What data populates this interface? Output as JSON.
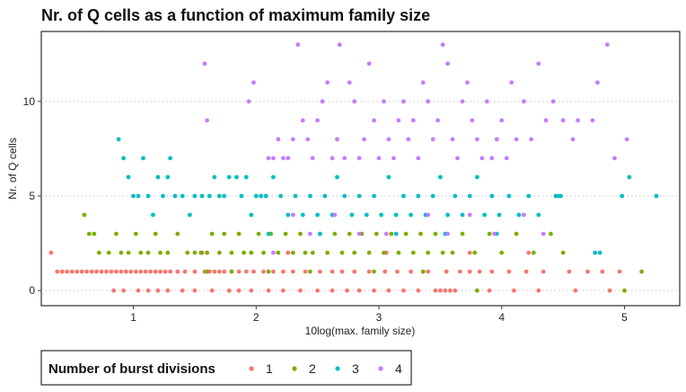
{
  "chart_data": {
    "type": "scatter",
    "title": "Nr. of Q cells as a function of maximum family size",
    "xlabel": "10log(max. family size)",
    "ylabel": "Nr. of Q cells",
    "xlim": [
      0.25,
      5.45
    ],
    "ylim": [
      -0.8,
      13.7
    ],
    "x_ticks": [
      1,
      2,
      3,
      4,
      5
    ],
    "y_ticks": [
      0,
      5,
      10
    ],
    "grid": "horizontal-dotted",
    "legend": {
      "title": "Number of burst divisions",
      "placement": "bottom-left"
    },
    "series": [
      {
        "name": "1",
        "color": "#F8766D",
        "points": [
          [
            0.33,
            2
          ],
          [
            0.38,
            1
          ],
          [
            0.42,
            1
          ],
          [
            0.46,
            1
          ],
          [
            0.5,
            1
          ],
          [
            0.54,
            1
          ],
          [
            0.58,
            1
          ],
          [
            0.62,
            1
          ],
          [
            0.66,
            1
          ],
          [
            0.7,
            1
          ],
          [
            0.74,
            1
          ],
          [
            0.78,
            1
          ],
          [
            0.82,
            1
          ],
          [
            0.86,
            1
          ],
          [
            0.9,
            1
          ],
          [
            0.94,
            1
          ],
          [
            0.98,
            1
          ],
          [
            1.02,
            1
          ],
          [
            1.06,
            1
          ],
          [
            1.1,
            1
          ],
          [
            1.14,
            1
          ],
          [
            1.18,
            1
          ],
          [
            1.22,
            1
          ],
          [
            1.26,
            1
          ],
          [
            1.3,
            1
          ],
          [
            1.36,
            1
          ],
          [
            1.42,
            1
          ],
          [
            1.5,
            1
          ],
          [
            1.58,
            1
          ],
          [
            1.62,
            1
          ],
          [
            1.66,
            1
          ],
          [
            1.7,
            1
          ],
          [
            1.74,
            1
          ],
          [
            1.8,
            1
          ],
          [
            1.86,
            1
          ],
          [
            1.92,
            1
          ],
          [
            1.98,
            1
          ],
          [
            2.06,
            1
          ],
          [
            2.14,
            1
          ],
          [
            2.22,
            1
          ],
          [
            2.3,
            1
          ],
          [
            2.4,
            1
          ],
          [
            2.52,
            1
          ],
          [
            2.62,
            1
          ],
          [
            2.7,
            1
          ],
          [
            2.8,
            1
          ],
          [
            2.92,
            1
          ],
          [
            3.05,
            1
          ],
          [
            3.15,
            1
          ],
          [
            3.26,
            1
          ],
          [
            3.4,
            1
          ],
          [
            3.55,
            1
          ],
          [
            3.66,
            1
          ],
          [
            3.74,
            1
          ],
          [
            3.82,
            1
          ],
          [
            3.92,
            1
          ],
          [
            4.06,
            1
          ],
          [
            4.2,
            1
          ],
          [
            4.34,
            1
          ],
          [
            4.55,
            1
          ],
          [
            4.7,
            1
          ],
          [
            4.82,
            1
          ],
          [
            4.96,
            1
          ],
          [
            0.84,
            0
          ],
          [
            0.92,
            0
          ],
          [
            1.04,
            0
          ],
          [
            1.12,
            0
          ],
          [
            1.2,
            0
          ],
          [
            1.28,
            0
          ],
          [
            1.4,
            0
          ],
          [
            1.5,
            0
          ],
          [
            1.64,
            0
          ],
          [
            1.78,
            0
          ],
          [
            1.86,
            0
          ],
          [
            1.96,
            0
          ],
          [
            2.1,
            0
          ],
          [
            2.22,
            0
          ],
          [
            2.36,
            0
          ],
          [
            2.5,
            0
          ],
          [
            2.62,
            0
          ],
          [
            2.74,
            0
          ],
          [
            2.84,
            0
          ],
          [
            2.96,
            0
          ],
          [
            3.08,
            0
          ],
          [
            3.2,
            0
          ],
          [
            3.32,
            0
          ],
          [
            3.46,
            0
          ],
          [
            3.5,
            0
          ],
          [
            3.54,
            0
          ],
          [
            3.58,
            0
          ],
          [
            3.62,
            0
          ],
          [
            3.9,
            0
          ],
          [
            4.1,
            0
          ],
          [
            4.3,
            0
          ],
          [
            4.6,
            0
          ],
          [
            4.88,
            0
          ],
          [
            1.56,
            2
          ],
          [
            1.96,
            2
          ],
          [
            2.26,
            2
          ],
          [
            3.06,
            2
          ],
          [
            3.74,
            2
          ],
          [
            4.22,
            2
          ]
        ]
      },
      {
        "name": "2",
        "color": "#7CAE00",
        "points": [
          [
            0.6,
            4
          ],
          [
            0.64,
            3
          ],
          [
            0.68,
            3
          ],
          [
            0.72,
            2
          ],
          [
            0.8,
            2
          ],
          [
            0.86,
            3
          ],
          [
            0.9,
            2
          ],
          [
            0.96,
            2
          ],
          [
            1.02,
            3
          ],
          [
            1.06,
            2
          ],
          [
            1.12,
            2
          ],
          [
            1.18,
            3
          ],
          [
            1.22,
            2
          ],
          [
            1.28,
            2
          ],
          [
            1.36,
            3
          ],
          [
            1.44,
            2
          ],
          [
            1.5,
            2
          ],
          [
            1.55,
            2
          ],
          [
            1.6,
            2
          ],
          [
            1.64,
            3
          ],
          [
            1.7,
            2
          ],
          [
            1.74,
            3
          ],
          [
            1.8,
            2
          ],
          [
            1.86,
            3
          ],
          [
            1.9,
            2
          ],
          [
            1.96,
            2
          ],
          [
            2.02,
            3
          ],
          [
            2.06,
            2
          ],
          [
            2.12,
            3
          ],
          [
            2.18,
            2
          ],
          [
            2.24,
            3
          ],
          [
            2.3,
            2
          ],
          [
            2.36,
            3
          ],
          [
            2.4,
            2
          ],
          [
            2.46,
            2
          ],
          [
            2.52,
            3
          ],
          [
            2.58,
            2
          ],
          [
            2.64,
            3
          ],
          [
            2.7,
            2
          ],
          [
            2.76,
            3
          ],
          [
            2.8,
            2
          ],
          [
            2.86,
            3
          ],
          [
            2.92,
            2
          ],
          [
            2.98,
            3
          ],
          [
            3.04,
            2
          ],
          [
            3.1,
            3
          ],
          [
            3.16,
            2
          ],
          [
            3.22,
            3
          ],
          [
            3.28,
            2
          ],
          [
            3.34,
            3
          ],
          [
            3.4,
            2
          ],
          [
            3.46,
            3
          ],
          [
            3.52,
            2
          ],
          [
            3.6,
            2
          ],
          [
            3.68,
            3
          ],
          [
            3.78,
            2
          ],
          [
            3.9,
            3
          ],
          [
            4.0,
            2
          ],
          [
            4.12,
            3
          ],
          [
            4.26,
            2
          ],
          [
            4.4,
            3
          ],
          [
            4.5,
            2
          ],
          [
            1.6,
            1
          ],
          [
            1.8,
            1
          ],
          [
            2.1,
            1
          ],
          [
            2.44,
            1
          ],
          [
            2.96,
            1
          ],
          [
            3.36,
            1
          ],
          [
            3.8,
            0
          ],
          [
            5.0,
            0
          ],
          [
            5.14,
            1
          ]
        ]
      },
      {
        "name": "3",
        "color": "#00BFC4",
        "points": [
          [
            0.88,
            8
          ],
          [
            0.92,
            7
          ],
          [
            0.96,
            6
          ],
          [
            1.0,
            5
          ],
          [
            1.04,
            5
          ],
          [
            1.08,
            7
          ],
          [
            1.12,
            5
          ],
          [
            1.16,
            4
          ],
          [
            1.2,
            6
          ],
          [
            1.24,
            5
          ],
          [
            1.28,
            6
          ],
          [
            1.3,
            7
          ],
          [
            1.34,
            5
          ],
          [
            1.4,
            5
          ],
          [
            1.46,
            4
          ],
          [
            1.5,
            5
          ],
          [
            1.56,
            5
          ],
          [
            1.62,
            5
          ],
          [
            1.66,
            6
          ],
          [
            1.7,
            5
          ],
          [
            1.74,
            5
          ],
          [
            1.78,
            6
          ],
          [
            1.84,
            6
          ],
          [
            1.88,
            5
          ],
          [
            1.92,
            6
          ],
          [
            1.96,
            4
          ],
          [
            2.0,
            5
          ],
          [
            2.04,
            5
          ],
          [
            2.08,
            5
          ],
          [
            2.14,
            6
          ],
          [
            2.2,
            5
          ],
          [
            2.26,
            4
          ],
          [
            2.32,
            5
          ],
          [
            2.38,
            4
          ],
          [
            2.44,
            5
          ],
          [
            2.5,
            4
          ],
          [
            2.56,
            5
          ],
          [
            2.62,
            4
          ],
          [
            2.66,
            6
          ],
          [
            2.72,
            5
          ],
          [
            2.78,
            4
          ],
          [
            2.84,
            5
          ],
          [
            2.9,
            4
          ],
          [
            2.96,
            5
          ],
          [
            3.02,
            4
          ],
          [
            3.08,
            6
          ],
          [
            3.14,
            4
          ],
          [
            3.2,
            5
          ],
          [
            3.26,
            4
          ],
          [
            3.32,
            5
          ],
          [
            3.38,
            4
          ],
          [
            3.44,
            5
          ],
          [
            3.5,
            6
          ],
          [
            3.56,
            4
          ],
          [
            3.62,
            5
          ],
          [
            3.68,
            4
          ],
          [
            3.74,
            5
          ],
          [
            3.8,
            6
          ],
          [
            3.86,
            4
          ],
          [
            3.92,
            5
          ],
          [
            3.98,
            4
          ],
          [
            4.06,
            5
          ],
          [
            4.14,
            4
          ],
          [
            4.22,
            5
          ],
          [
            4.3,
            4
          ],
          [
            4.44,
            5
          ],
          [
            4.46,
            5
          ],
          [
            4.48,
            5
          ],
          [
            4.76,
            2
          ],
          [
            4.8,
            2
          ],
          [
            4.98,
            5
          ],
          [
            5.04,
            6
          ],
          [
            5.26,
            5
          ],
          [
            2.1,
            3
          ],
          [
            2.52,
            3
          ],
          [
            3.14,
            3
          ],
          [
            3.54,
            3
          ],
          [
            3.96,
            3
          ]
        ]
      },
      {
        "name": "4",
        "color": "#C77CFF",
        "points": [
          [
            1.58,
            12
          ],
          [
            1.6,
            9
          ],
          [
            1.94,
            10
          ],
          [
            1.98,
            11
          ],
          [
            2.1,
            7
          ],
          [
            2.14,
            7
          ],
          [
            2.18,
            8
          ],
          [
            2.22,
            7
          ],
          [
            2.26,
            7
          ],
          [
            2.3,
            8
          ],
          [
            2.34,
            13
          ],
          [
            2.38,
            9
          ],
          [
            2.42,
            8
          ],
          [
            2.46,
            7
          ],
          [
            2.5,
            9
          ],
          [
            2.54,
            10
          ],
          [
            2.58,
            11
          ],
          [
            2.62,
            7
          ],
          [
            2.66,
            8
          ],
          [
            2.68,
            13
          ],
          [
            2.72,
            7
          ],
          [
            2.76,
            11
          ],
          [
            2.8,
            10
          ],
          [
            2.84,
            7
          ],
          [
            2.88,
            8
          ],
          [
            2.92,
            12
          ],
          [
            2.96,
            9
          ],
          [
            3.0,
            7
          ],
          [
            3.04,
            10
          ],
          [
            3.08,
            8
          ],
          [
            3.12,
            7
          ],
          [
            3.16,
            9
          ],
          [
            3.2,
            10
          ],
          [
            3.24,
            8
          ],
          [
            3.28,
            9
          ],
          [
            3.32,
            7
          ],
          [
            3.36,
            11
          ],
          [
            3.4,
            10
          ],
          [
            3.44,
            8
          ],
          [
            3.48,
            9
          ],
          [
            3.52,
            13
          ],
          [
            3.56,
            12
          ],
          [
            3.6,
            8
          ],
          [
            3.64,
            7
          ],
          [
            3.68,
            10
          ],
          [
            3.72,
            11
          ],
          [
            3.76,
            9
          ],
          [
            3.8,
            8
          ],
          [
            3.84,
            7
          ],
          [
            3.88,
            10
          ],
          [
            3.92,
            7
          ],
          [
            3.96,
            8
          ],
          [
            4.0,
            9
          ],
          [
            4.04,
            7
          ],
          [
            4.08,
            11
          ],
          [
            4.12,
            8
          ],
          [
            4.18,
            10
          ],
          [
            4.24,
            8
          ],
          [
            4.3,
            12
          ],
          [
            4.36,
            9
          ],
          [
            4.42,
            10
          ],
          [
            4.5,
            9
          ],
          [
            4.58,
            8
          ],
          [
            4.62,
            9
          ],
          [
            4.74,
            9
          ],
          [
            4.78,
            11
          ],
          [
            4.86,
            13
          ],
          [
            4.92,
            7
          ],
          [
            5.02,
            8
          ],
          [
            2.14,
            2
          ],
          [
            2.3,
            4
          ],
          [
            2.44,
            3
          ],
          [
            2.64,
            4
          ],
          [
            2.84,
            3
          ],
          [
            3.06,
            3
          ],
          [
            3.4,
            4
          ],
          [
            3.56,
            3
          ],
          [
            3.74,
            4
          ],
          [
            3.94,
            3
          ],
          [
            4.18,
            4
          ],
          [
            4.34,
            3
          ]
        ]
      }
    ]
  }
}
